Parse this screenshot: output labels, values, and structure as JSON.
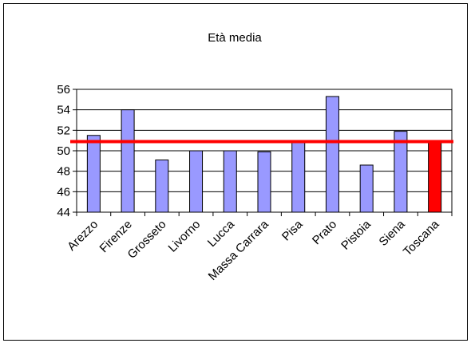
{
  "chart_data": {
    "type": "bar",
    "title": "Età media",
    "xlabel": "",
    "ylabel": "",
    "categories": [
      "Arezzo",
      "Firenze",
      "Grosseto",
      "Livorno",
      "Lucca",
      "Massa Carrara",
      "Pisa",
      "Prato",
      "Pistoia",
      "Siena",
      "Toscana"
    ],
    "values": [
      51.5,
      54.0,
      49.1,
      50.0,
      50.0,
      49.9,
      50.9,
      55.3,
      48.6,
      51.9,
      50.9
    ],
    "highlight_category": "Toscana",
    "reference_line": 50.9,
    "ylim": [
      44,
      56
    ],
    "yticks": [
      44,
      46,
      48,
      50,
      52,
      54,
      56
    ],
    "grid": true,
    "legend": "none",
    "colors": {
      "bar": "#9999ff",
      "highlight_bar": "#ff0000",
      "reference_line": "#ff0000",
      "grid": "#000000"
    }
  }
}
